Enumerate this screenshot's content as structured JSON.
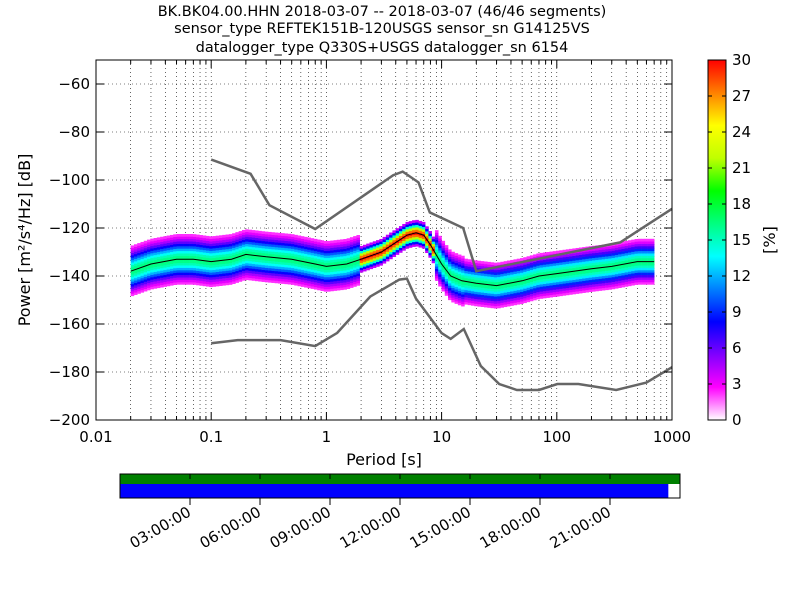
{
  "chart_data": {
    "type": "heatmap",
    "title_lines": [
      "BK.BK04.00.HHN   2018-03-07 -- 2018-03-07  (46/46 segments)",
      "sensor_type REFTEK151B-120USGS sensor_sn G14125VS",
      "datalogger_type Q330S+USGS datalogger_sn 6154"
    ],
    "xlabel": "Period [s]",
    "ylabel": "Power [m²/s⁴/Hz] [dB]",
    "xscale": "log",
    "xlim": [
      0.01,
      1000
    ],
    "ylim": [
      -200,
      -50
    ],
    "x_ticks": [
      0.01,
      0.1,
      1,
      10,
      100,
      1000
    ],
    "x_tick_labels": [
      "0.01",
      "0.1",
      "1",
      "10",
      "100",
      "1000"
    ],
    "y_ticks": [
      -200,
      -180,
      -160,
      -140,
      -120,
      -100,
      -80,
      -60
    ],
    "y_tick_labels": [
      "−200",
      "−180",
      "−160",
      "−140",
      "−120",
      "−100",
      "−80",
      "−60"
    ],
    "colorbar": {
      "label": "[%]",
      "range": [
        0,
        30
      ],
      "ticks": [
        "0",
        "3",
        "6",
        "9",
        "12",
        "15",
        "18",
        "21",
        "24",
        "27",
        "30"
      ]
    },
    "noise_models": [
      {
        "points": [
          [
            0.1,
            -91.5
          ],
          [
            0.22,
            -97.4
          ],
          [
            0.32,
            -110.5
          ],
          [
            0.8,
            -120.4
          ],
          [
            3.8,
            -98.0
          ],
          [
            4.6,
            -96.5
          ],
          [
            6.3,
            -101.0
          ],
          [
            7.9,
            -113.5
          ],
          [
            15.4,
            -120.0
          ],
          [
            20,
            -138.0
          ],
          [
            354.8,
            -126.0
          ],
          [
            1000,
            -112.0
          ]
        ]
      },
      {
        "points": [
          [
            0.1,
            -168.0
          ],
          [
            0.17,
            -166.7
          ],
          [
            0.4,
            -166.7
          ],
          [
            0.8,
            -169.2
          ],
          [
            1.24,
            -163.7
          ],
          [
            2.4,
            -148.6
          ],
          [
            4.3,
            -141.5
          ],
          [
            5.0,
            -141.1
          ],
          [
            6.0,
            -149.4
          ],
          [
            10,
            -163.8
          ],
          [
            12,
            -166.2
          ],
          [
            15.6,
            -162.1
          ],
          [
            21.9,
            -177.5
          ],
          [
            31.6,
            -185.0
          ],
          [
            45,
            -187.5
          ],
          [
            70,
            -187.5
          ],
          [
            101,
            -185.0
          ],
          [
            154,
            -185.0
          ],
          [
            328,
            -187.5
          ],
          [
            600,
            -184.4
          ],
          [
            1000,
            -178.0
          ]
        ]
      }
    ],
    "mode_curve": {
      "points": [
        [
          0.02,
          -138
        ],
        [
          0.03,
          -135
        ],
        [
          0.05,
          -133
        ],
        [
          0.07,
          -133
        ],
        [
          0.1,
          -134
        ],
        [
          0.15,
          -133
        ],
        [
          0.2,
          -131
        ],
        [
          0.3,
          -132
        ],
        [
          0.5,
          -133
        ],
        [
          0.8,
          -135
        ],
        [
          1.0,
          -136
        ],
        [
          1.5,
          -135
        ],
        [
          2.0,
          -133
        ],
        [
          3.0,
          -130
        ],
        [
          4.0,
          -126
        ],
        [
          5.0,
          -123
        ],
        [
          6.0,
          -122
        ],
        [
          7.0,
          -123
        ],
        [
          8.0,
          -127
        ],
        [
          10,
          -135
        ],
        [
          12,
          -140
        ],
        [
          15,
          -142
        ],
        [
          20,
          -143
        ],
        [
          30,
          -144
        ],
        [
          50,
          -142
        ],
        [
          70,
          -140
        ],
        [
          100,
          -139
        ],
        [
          200,
          -137
        ],
        [
          300,
          -136
        ],
        [
          500,
          -134
        ],
        [
          700,
          -134
        ]
      ]
    },
    "time_axis": {
      "tick_labels": [
        "03:00:00",
        "06:00:00",
        "09:00:00",
        "12:00:00",
        "15:00:00",
        "18:00:00",
        "21:00:00"
      ],
      "tick_hours": [
        3,
        6,
        9,
        12,
        15,
        18,
        21
      ],
      "range_hours": [
        0,
        24
      ],
      "data_available_until_hours": 24,
      "used_until_hours": 23.5,
      "available_color": "#008000",
      "used_color": "#0000ff"
    },
    "colors": {
      "noise_model": "#666666",
      "mode_curve": "#000000",
      "colormap": [
        "#ffffff",
        "#ff00ff",
        "#8000ff",
        "#0000ff",
        "#0080ff",
        "#00ffff",
        "#00ff80",
        "#00ff00",
        "#c0ff00",
        "#ffff00",
        "#ff8000",
        "#ff0000"
      ]
    }
  }
}
